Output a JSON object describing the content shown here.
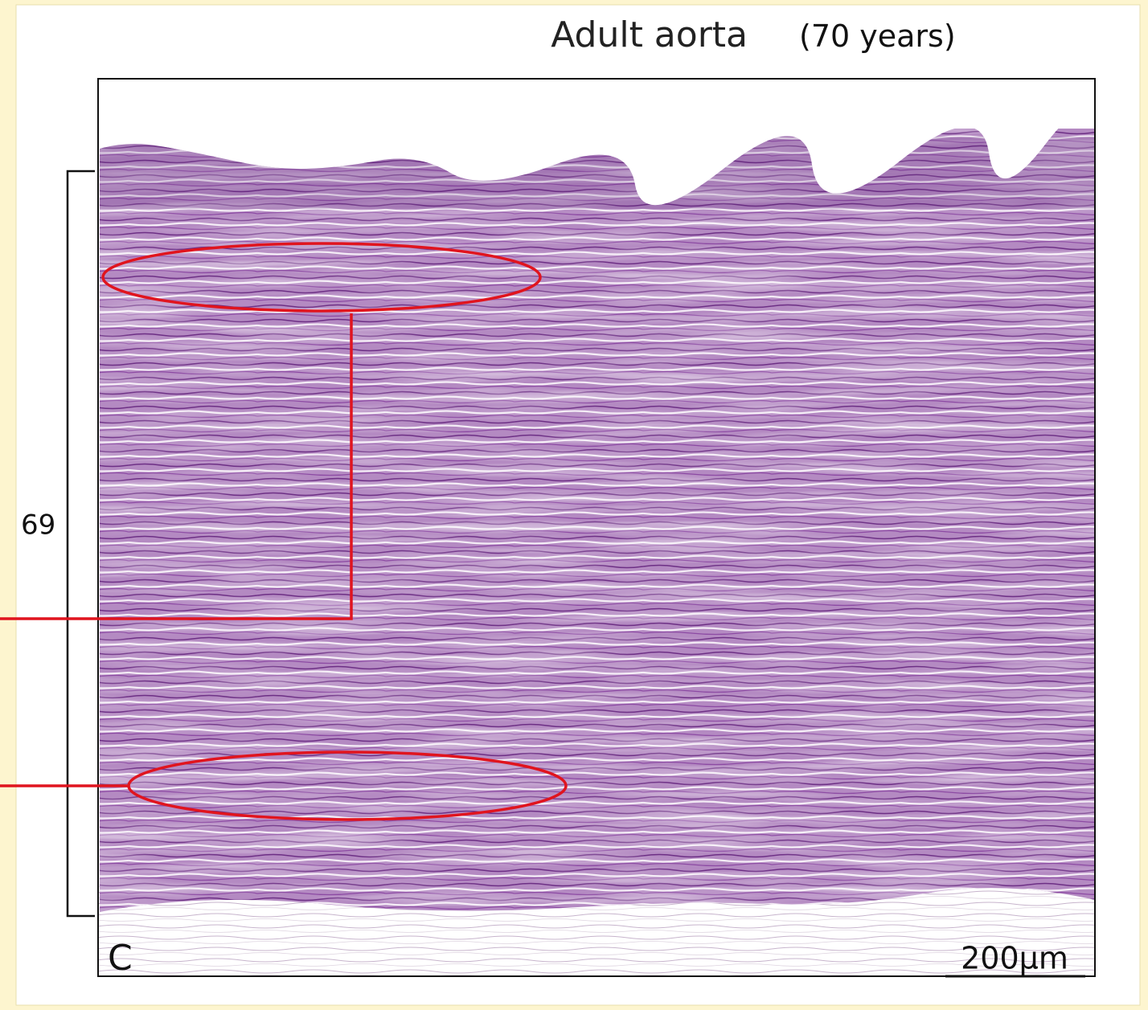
{
  "figure": {
    "title": "Adult aorta",
    "subtitle": "(70 years)",
    "bracket_label": "69",
    "panel_letter": "C",
    "scale_bar_label": "200µm"
  }
}
